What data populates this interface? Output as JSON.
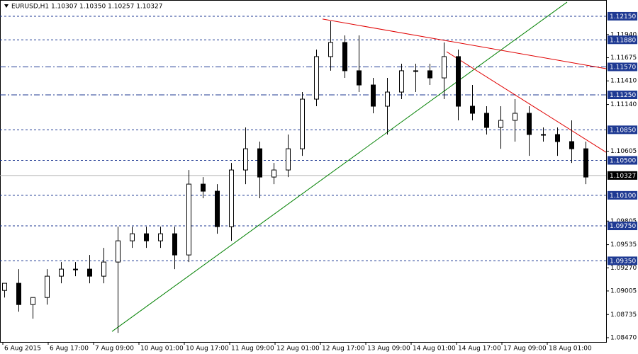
{
  "chart_data": {
    "type": "candlestick",
    "title": "EURUSD,H1  1.10307 1.10350 1.10257 1.10327",
    "x": [
      1.5,
      6.5,
      11.5,
      16.5,
      21.5,
      26.5,
      31.5,
      36.5,
      41.5,
      46.5,
      51.5,
      56.5,
      61.5,
      66.5,
      71.5,
      76.5,
      81.5,
      86.5,
      91.5,
      96.5,
      101.5,
      106.5,
      111.5,
      116.5,
      121.5,
      126.5,
      131.5,
      136.5,
      141.5,
      146.5,
      151.5,
      156.5,
      161.5,
      166.5,
      171.5,
      176.5,
      181.5,
      186.5,
      191.5,
      196.5,
      201.5,
      206.5
    ],
    "open": [
      1.09011,
      1.09093,
      1.08849,
      1.0893,
      1.09174,
      1.09255,
      1.09255,
      1.09174,
      1.09336,
      1.09579,
      1.0966,
      1.09579,
      1.0966,
      1.09417,
      1.10228,
      1.10147,
      1.09741,
      1.1039,
      1.10633,
      1.10309,
      1.1039,
      1.10633,
      1.11201,
      1.11688,
      1.1185,
      1.11526,
      1.11363,
      1.1112,
      1.11282,
      1.11526,
      1.11526,
      1.11444,
      1.11688,
      1.1112,
      1.11039,
      1.10877,
      1.10958,
      1.11039,
      1.10796,
      1.10796,
      1.10715,
      1.10633
    ],
    "high": [
      1.09093,
      1.09255,
      1.0893,
      1.09255,
      1.09336,
      1.09336,
      1.09417,
      1.09498,
      1.09741,
      1.09741,
      1.09741,
      1.09741,
      1.09741,
      1.1039,
      1.10309,
      1.10228,
      1.10471,
      1.10877,
      1.10715,
      1.10471,
      1.10796,
      1.11282,
      1.11769,
      1.12093,
      1.11931,
      1.11931,
      1.11444,
      1.11444,
      1.11607,
      1.11607,
      1.11607,
      1.1185,
      1.11769,
      1.11363,
      1.1112,
      1.1112,
      1.11201,
      1.1112,
      1.10877,
      1.10877,
      1.10958,
      1.10715
    ],
    "low": [
      1.0893,
      1.08768,
      1.08687,
      1.08849,
      1.09093,
      1.09174,
      1.09093,
      1.09093,
      1.08525,
      1.09498,
      1.09498,
      1.09498,
      1.09255,
      1.09336,
      1.10066,
      1.0966,
      1.09579,
      1.10228,
      1.10066,
      1.10228,
      1.10309,
      1.10552,
      1.1112,
      1.11526,
      1.11444,
      1.11282,
      1.11039,
      1.10796,
      1.11201,
      1.11282,
      1.11363,
      1.11201,
      1.10958,
      1.10958,
      1.10796,
      1.10633,
      1.10715,
      1.10552,
      1.10715,
      1.10552,
      1.10471,
      1.10228
    ],
    "close": [
      1.09093,
      1.08849,
      1.0893,
      1.09174,
      1.09255,
      1.09255,
      1.09174,
      1.09336,
      1.09579,
      1.0966,
      1.09579,
      1.0966,
      1.09417,
      1.10228,
      1.10147,
      1.09741,
      1.1039,
      1.10633,
      1.10309,
      1.1039,
      1.10633,
      1.11201,
      1.11688,
      1.1185,
      1.11526,
      1.11363,
      1.1112,
      1.11282,
      1.11526,
      1.11526,
      1.11444,
      1.11688,
      1.1112,
      1.11039,
      1.10877,
      1.10958,
      1.11039,
      1.10796,
      1.10796,
      1.10715,
      1.10633,
      1.10309
    ],
    "xlim": [
      0,
      213.75
    ],
    "ylim": [
      1.08421,
      1.12336
    ],
    "yticks": [
      {
        "value": 1.1194,
        "label": "1.11940"
      },
      {
        "value": 1.11675,
        "label": "1.11675"
      },
      {
        "value": 1.1141,
        "label": "1.11410"
      },
      {
        "value": 1.1114,
        "label": "1.11140"
      },
      {
        "value": 1.10605,
        "label": "1.10605"
      },
      {
        "value": 1.09805,
        "label": "1.09805"
      },
      {
        "value": 1.09535,
        "label": "1.09535"
      },
      {
        "value": 1.0927,
        "label": "1.09270"
      },
      {
        "value": 1.09005,
        "label": "1.09005"
      },
      {
        "value": 1.08735,
        "label": "1.08735"
      },
      {
        "value": 1.0847,
        "label": "1.08470"
      }
    ],
    "xticks": [
      {
        "value": 1,
        "label": "6 Aug 2015"
      },
      {
        "value": 17,
        "label": "6 Aug 17:00"
      },
      {
        "value": 33,
        "label": "7 Aug 09:00"
      },
      {
        "value": 49,
        "label": "10 Aug 01:00"
      },
      {
        "value": 65,
        "label": "10 Aug 17:00"
      },
      {
        "value": 81,
        "label": "11 Aug 09:00"
      },
      {
        "value": 97,
        "label": "12 Aug 01:00"
      },
      {
        "value": 113,
        "label": "12 Aug 17:00"
      },
      {
        "value": 129,
        "label": "13 Aug 09:00"
      },
      {
        "value": 145,
        "label": "14 Aug 01:00"
      },
      {
        "value": 161,
        "label": "14 Aug 17:00"
      },
      {
        "value": 177,
        "label": "17 Aug 09:00"
      },
      {
        "value": 193,
        "label": "18 Aug 01:00"
      }
    ],
    "levels": [
      {
        "value": 1.1215,
        "label": "1.12150",
        "style": "dash"
      },
      {
        "value": 1.1188,
        "label": "1.11880",
        "style": "dash"
      },
      {
        "value": 1.1157,
        "label": "1.11570",
        "style": "dashdot"
      },
      {
        "value": 1.1125,
        "label": "1.11250",
        "style": "dashdot"
      },
      {
        "value": 1.1085,
        "label": "1.10850",
        "style": "dash"
      },
      {
        "value": 1.105,
        "label": "1.10500",
        "style": "dash"
      },
      {
        "value": 1.101,
        "label": "1.10100",
        "style": "dash"
      },
      {
        "value": 1.0975,
        "label": "1.09750",
        "style": "dash"
      },
      {
        "value": 1.0935,
        "label": "1.09350",
        "style": "dash"
      }
    ],
    "level_color": "#1f3a93",
    "current": {
      "value": 1.10327,
      "label": "1.10327"
    },
    "trendlines": [
      {
        "x": [
          39.5,
          200
        ],
        "y": [
          1.08541,
          1.12312
        ],
        "color": "#008000"
      },
      {
        "x": [
          113.75,
          213.75
        ],
        "y": [
          1.12118,
          1.1155
        ],
        "color": "#e00000"
      },
      {
        "x": [
          157.5,
          213.75
        ],
        "y": [
          1.11744,
          1.10593
        ],
        "color": "#e00000"
      }
    ]
  }
}
